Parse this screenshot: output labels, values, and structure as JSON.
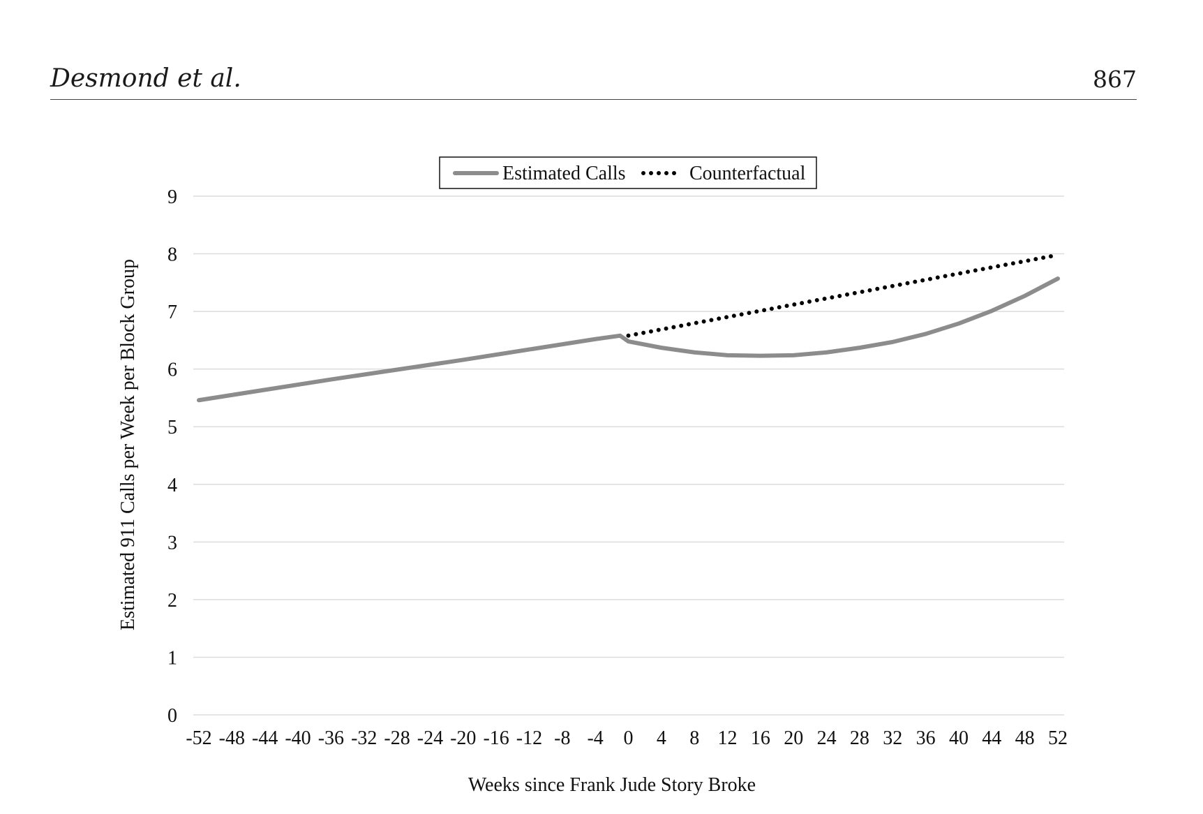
{
  "header": {
    "author": "Desmond et al.",
    "page_number": "867"
  },
  "chart_data": {
    "type": "line",
    "xlabel": "Weeks since Frank Jude Story Broke",
    "ylabel": "Estimated 911 Calls per Week per Block Group",
    "xlim": [
      -52,
      52
    ],
    "ylim": [
      0,
      9
    ],
    "x_ticks": [
      -52,
      -48,
      -44,
      -40,
      -36,
      -32,
      -28,
      -24,
      -20,
      -16,
      -12,
      -8,
      -4,
      0,
      4,
      8,
      12,
      16,
      20,
      24,
      28,
      32,
      36,
      40,
      44,
      48,
      52
    ],
    "y_ticks": [
      0,
      1,
      2,
      3,
      4,
      5,
      6,
      7,
      8,
      9
    ],
    "grid": "horizontal",
    "legend": "top-center",
    "series": [
      {
        "name": "Estimated Calls",
        "color": "#8c8c8c",
        "style": "solid",
        "x": [
          -52,
          -44,
          -36,
          -28,
          -20,
          -12,
          -4,
          -1,
          0,
          4,
          8,
          12,
          16,
          20,
          24,
          28,
          32,
          36,
          40,
          44,
          48,
          52
        ],
        "y": [
          5.46,
          5.64,
          5.82,
          5.99,
          6.16,
          6.34,
          6.52,
          6.58,
          6.48,
          6.37,
          6.29,
          6.24,
          6.23,
          6.24,
          6.29,
          6.37,
          6.47,
          6.61,
          6.79,
          7.01,
          7.27,
          7.57
        ]
      },
      {
        "name": "Counterfactual",
        "color": "#000000",
        "style": "dotted",
        "x": [
          0,
          52
        ],
        "y": [
          6.58,
          7.98
        ]
      }
    ]
  }
}
